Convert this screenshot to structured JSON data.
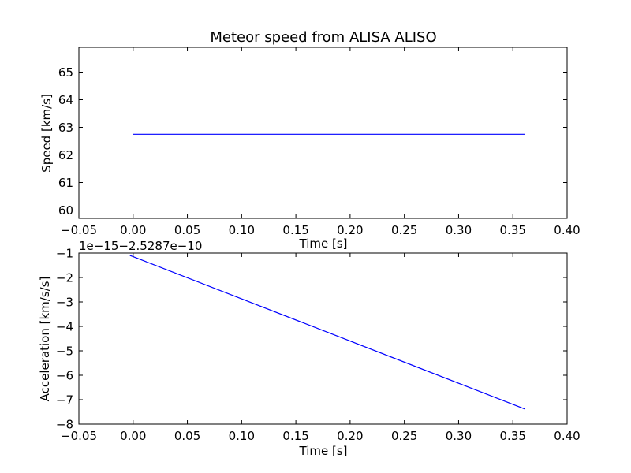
{
  "figure": {
    "title": "Meteor speed from  ALISA ALISO"
  },
  "chart_data": [
    {
      "type": "line",
      "title": "Meteor speed from  ALISA ALISO",
      "xlabel": "Time [s]",
      "ylabel": "Speed [km/s]",
      "xlim": [
        -0.05,
        0.4
      ],
      "ylim": [
        59.7,
        65.9
      ],
      "xticks": [
        -0.05,
        0.0,
        0.05,
        0.1,
        0.15,
        0.2,
        0.25,
        0.3,
        0.35,
        0.4
      ],
      "xtick_labels": [
        "−0.05",
        "0.00",
        "0.05",
        "0.10",
        "0.15",
        "0.20",
        "0.25",
        "0.30",
        "0.35",
        "0.40"
      ],
      "yticks": [
        60,
        61,
        62,
        63,
        64,
        65
      ],
      "ytick_labels": [
        "60",
        "61",
        "62",
        "63",
        "64",
        "65"
      ],
      "grid": false,
      "series": [
        {
          "color": "#0000ff",
          "x": [
            0.0,
            0.361
          ],
          "y": [
            62.75,
            62.75
          ]
        }
      ]
    },
    {
      "type": "line",
      "title": "",
      "xlabel": "Time [s]",
      "ylabel": "Acceleration [km/s/s]",
      "offset_label": "1e−15−2.5287e−10",
      "xlim": [
        -0.05,
        0.4
      ],
      "ylim": [
        -8,
        -1
      ],
      "xticks": [
        -0.05,
        0.0,
        0.05,
        0.1,
        0.15,
        0.2,
        0.25,
        0.3,
        0.35,
        0.4
      ],
      "xtick_labels": [
        "−0.05",
        "0.00",
        "0.05",
        "0.10",
        "0.15",
        "0.20",
        "0.25",
        "0.30",
        "0.35",
        "0.40"
      ],
      "yticks": [
        -8,
        -7,
        -6,
        -5,
        -4,
        -3,
        -2,
        -1
      ],
      "ytick_labels": [
        "−8",
        "−7",
        "−6",
        "−5",
        "−4",
        "−3",
        "−2",
        "−1"
      ],
      "grid": false,
      "series": [
        {
          "color": "#0000ff",
          "x": [
            -0.003,
            0.0,
            0.361
          ],
          "y": [
            -1.1,
            -1.15,
            -7.38
          ]
        }
      ]
    }
  ]
}
